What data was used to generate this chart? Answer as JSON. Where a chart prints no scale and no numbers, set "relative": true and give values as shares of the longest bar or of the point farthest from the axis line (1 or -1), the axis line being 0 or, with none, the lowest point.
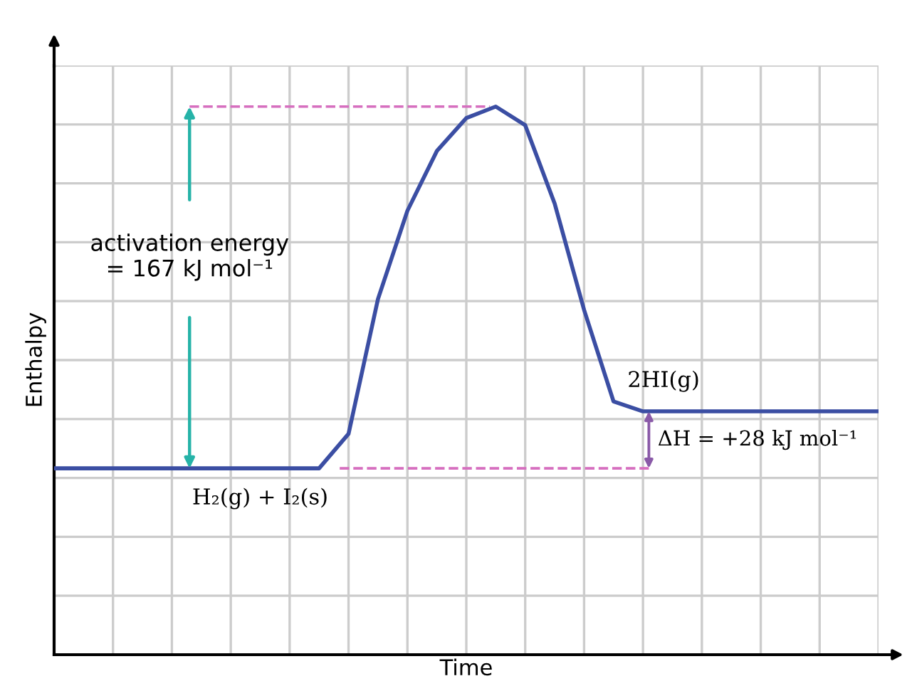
{
  "chart_data": {
    "type": "line",
    "relative": true,
    "xlabel": "Time",
    "ylabel": "Enthalpy",
    "categories": [
      null,
      null,
      null,
      null,
      null,
      null,
      null,
      null,
      null,
      null,
      null,
      null,
      null,
      null,
      null,
      null,
      null,
      null,
      null,
      null,
      null,
      null,
      null,
      null,
      null,
      null,
      null,
      null,
      null
    ],
    "series": [
      {
        "color": "#3b4ea3",
        "values": [
          0.34,
          0.34,
          0.34,
          0.34,
          0.34,
          0.34,
          0.34,
          0.34,
          0.34,
          0.34,
          0.403,
          0.649,
          0.81,
          0.919,
          0.979,
          1.0,
          0.966,
          0.823,
          0.629,
          0.462,
          0.444,
          0.444,
          0.444,
          0.444,
          0.444,
          0.444,
          0.444,
          0.444,
          0.444
        ]
      }
    ],
    "ref_lines": [
      {
        "axis": "y",
        "value": 1.0,
        "color": "#d66fbf",
        "line_style": "dashed"
      },
      {
        "axis": "y",
        "value": 0.34,
        "color": "#d66fbf",
        "line_style": "dashed"
      }
    ],
    "annotations": [
      "activation energy\n= 167 kJ mol⁻¹",
      "H₂(g) + I₂(s)",
      "2HI(g)",
      "ΔH = +28 kJ mol⁻¹"
    ],
    "grid": true,
    "marker": "none",
    "line_style": "solid"
  }
}
